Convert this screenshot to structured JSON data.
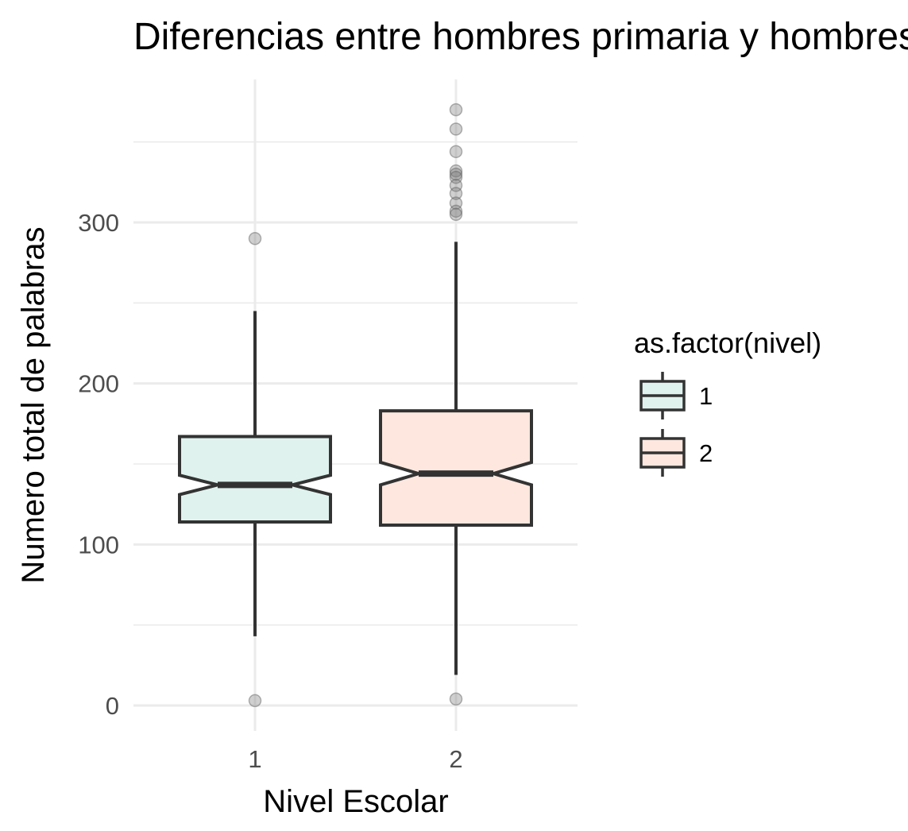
{
  "chart_data": {
    "type": "box",
    "title": "Diferencias entre hombres primaria y hombres secundaria",
    "xlabel": "Nivel Escolar",
    "ylabel": "Numero total de palabras",
    "categories": [
      "1",
      "2"
    ],
    "y_ticks": [
      0,
      100,
      200,
      300
    ],
    "ylim": [
      -15,
      390
    ],
    "grid": true,
    "notched": true,
    "legend": {
      "title": "as.factor(nivel)",
      "placement": "right",
      "entries": [
        "1",
        "2"
      ]
    },
    "series": [
      {
        "category": "1",
        "color": "#dff2ee",
        "whisker_low": 43,
        "q1": 114,
        "median": 137,
        "q3": 167,
        "whisker_high": 245,
        "notch_low": 131,
        "notch_high": 143,
        "outliers": [
          290,
          3
        ]
      },
      {
        "category": "2",
        "color": "#fde7df",
        "whisker_low": 19,
        "q1": 112,
        "median": 144,
        "q3": 183,
        "whisker_high": 288,
        "notch_low": 137,
        "notch_high": 151,
        "outliers": [
          370,
          358,
          344,
          332,
          330,
          328,
          323,
          318,
          312,
          307,
          305,
          4
        ]
      }
    ]
  }
}
